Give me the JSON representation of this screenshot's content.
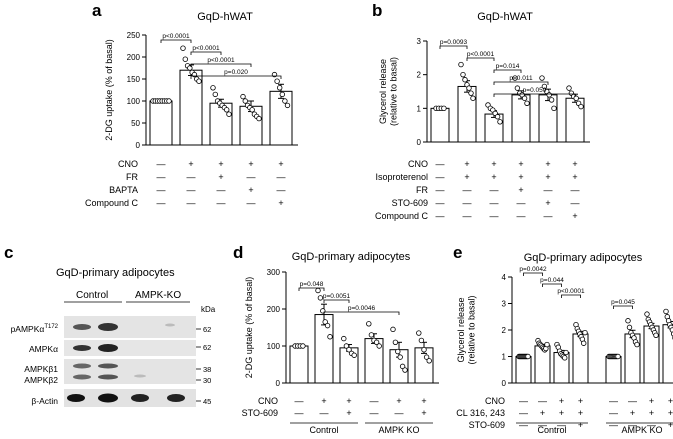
{
  "panels": {
    "a": {
      "letter": "a",
      "chart_data": {
        "type": "bar",
        "title": "GqD-hWAT",
        "ylabel": "2-DG uptake (% of basal)",
        "ylim": [
          0,
          250
        ],
        "yticks": [
          0,
          50,
          100,
          150,
          200,
          250
        ],
        "values": [
          100,
          170,
          95,
          88,
          122
        ],
        "errors": [
          1,
          12,
          9,
          12,
          16
        ],
        "points": [
          [
            100,
            100,
            100,
            100,
            100,
            100,
            100,
            100
          ],
          [
            220,
            195,
            180,
            175,
            165,
            160,
            150,
            145
          ],
          [
            130,
            115,
            100,
            95,
            90,
            85,
            80,
            70
          ],
          [
            110,
            100,
            90,
            85,
            80,
            70,
            65,
            60
          ],
          [
            160,
            145,
            130,
            115,
            100,
            90
          ]
        ],
        "conditions": [
          {
            "name": "CNO",
            "marks": [
              "—",
              "+",
              "+",
              "+",
              "+"
            ]
          },
          {
            "name": "FR",
            "marks": [
              "—",
              "—",
              "+",
              "—",
              "—"
            ]
          },
          {
            "name": "BAPTA",
            "marks": [
              "—",
              "—",
              "—",
              "+",
              "—"
            ]
          },
          {
            "name": "Compound C",
            "marks": [
              "—",
              "—",
              "—",
              "—",
              "+"
            ]
          }
        ],
        "pvalues": [
          {
            "text": "p<0.0001",
            "from": 0,
            "to": 1
          },
          {
            "text": "p<0.0001",
            "from": 1,
            "to": 2
          },
          {
            "text": "p<0.0001",
            "from": 1,
            "to": 3
          },
          {
            "text": "p=0.020",
            "from": 1,
            "to": 4
          }
        ]
      }
    },
    "b": {
      "letter": "b",
      "chart_data": {
        "type": "bar",
        "title": "GqD-hWAT",
        "ylabel": "Glycerol release (relative to basal)",
        "ylim": [
          0,
          3
        ],
        "yticks": [
          0,
          1,
          2,
          3
        ],
        "values": [
          1.0,
          1.65,
          0.83,
          1.4,
          1.4,
          1.3
        ],
        "errors": [
          0.01,
          0.17,
          0.1,
          0.12,
          0.17,
          0.12
        ],
        "points": [
          [
            1,
            1,
            1,
            1
          ],
          [
            2.3,
            2.0,
            1.85,
            1.7,
            1.6,
            1.45,
            1.3
          ],
          [
            1.1,
            1.0,
            0.95,
            0.85,
            0.75,
            0.6
          ],
          [
            1.9,
            1.6,
            1.45,
            1.4,
            1.3,
            1.15
          ],
          [
            1.9,
            1.65,
            1.5,
            1.4,
            1.25,
            1.0
          ],
          [
            1.6,
            1.45,
            1.35,
            1.3,
            1.15,
            1.05
          ]
        ],
        "conditions": [
          {
            "name": "CNO",
            "marks": [
              "—",
              "+",
              "+",
              "+",
              "+",
              "+"
            ]
          },
          {
            "name": "Isoproterenol",
            "marks": [
              "—",
              "+",
              "+",
              "+",
              "+",
              "+"
            ]
          },
          {
            "name": "FR",
            "marks": [
              "—",
              "—",
              "—",
              "+",
              "—",
              "—"
            ]
          },
          {
            "name": "STO-609",
            "marks": [
              "—",
              "—",
              "—",
              "—",
              "+",
              "—"
            ]
          },
          {
            "name": "Compound C",
            "marks": [
              "—",
              "—",
              "—",
              "—",
              "—",
              "+"
            ]
          }
        ],
        "pvalues": [
          {
            "text": "p=0.0093",
            "from": 0,
            "to": 1
          },
          {
            "text": "p<0.0001",
            "from": 1,
            "to": 2
          },
          {
            "text": "p=0.014",
            "from": 2,
            "to": 3
          },
          {
            "text": "p=0.011",
            "from": 2,
            "to": 4
          },
          {
            "text": "p=0.050",
            "from": 2,
            "to": 5
          }
        ]
      }
    },
    "c": {
      "letter": "c",
      "title": "GqD-primary adipocytes",
      "groups": [
        "Control",
        "AMPK-KO"
      ],
      "rows": [
        {
          "label": "pAMPKα",
          "sup": "T172",
          "kda": "62"
        },
        {
          "label": "AMPKα",
          "sup": "",
          "kda": "62"
        },
        {
          "label": "AMPKβ1",
          "sup": "",
          "kda": "38"
        },
        {
          "label": "AMPKβ2",
          "sup": "",
          "kda": "30"
        },
        {
          "label": "β-Actin",
          "sup": "",
          "kda": "45"
        }
      ],
      "kda_unit": "kDa"
    },
    "d": {
      "letter": "d",
      "chart_data": {
        "type": "bar",
        "title": "GqD-primary adipocytes",
        "ylabel": "2-DG uptake (% of basal)",
        "ylim": [
          0,
          300
        ],
        "yticks": [
          0,
          100,
          200,
          300
        ],
        "values": [
          100,
          185,
          95,
          120,
          90,
          95
        ],
        "errors": [
          1,
          28,
          9,
          13,
          20,
          15
        ],
        "points": [
          [
            100,
            100,
            100,
            100
          ],
          [
            250,
            230,
            195,
            165,
            155,
            125
          ],
          [
            120,
            100,
            90,
            80,
            75
          ],
          [
            160,
            130,
            115,
            110,
            100
          ],
          [
            145,
            110,
            85,
            70,
            45,
            35
          ],
          [
            135,
            115,
            90,
            70,
            60
          ]
        ],
        "conditions": [
          {
            "name": "CNO",
            "marks": [
              "—",
              "+",
              "+",
              "—",
              "+",
              "+"
            ]
          },
          {
            "name": "STO-609",
            "marks": [
              "—",
              "—",
              "+",
              "—",
              "—",
              "+"
            ]
          }
        ],
        "groups": [
          {
            "name": "Control",
            "from": 0,
            "to": 2
          },
          {
            "name": "AMPK KO",
            "from": 3,
            "to": 5
          }
        ],
        "pvalues": [
          {
            "text": "p=0.048",
            "from": 0,
            "to": 1
          },
          {
            "text": "p=0.0051",
            "from": 1,
            "to": 2
          },
          {
            "text": "p=0.0046",
            "from": 1,
            "to": 4
          }
        ]
      }
    },
    "e": {
      "letter": "e",
      "chart_data": {
        "type": "bar",
        "title": "GqD-primary adipocytes",
        "ylabel": "Glycerol release (relative to basal)",
        "ylim": [
          0,
          4
        ],
        "yticks": [
          0,
          1,
          2,
          3,
          4
        ],
        "values": [
          1.0,
          1.4,
          1.15,
          1.85,
          1.0,
          1.85,
          2.15,
          2.2
        ],
        "errors": [
          0.01,
          0.06,
          0.08,
          0.1,
          0.01,
          0.14,
          0.1,
          0.12
        ],
        "points": [
          [
            1,
            1,
            1,
            1,
            1,
            1,
            1,
            1,
            1,
            1
          ],
          [
            1.6,
            1.5,
            1.45,
            1.4,
            1.35,
            1.3,
            1.25,
            1.3,
            1.45
          ],
          [
            1.45,
            1.35,
            1.2,
            1.1,
            1.05,
            1.0,
            0.95,
            1.15
          ],
          [
            2.2,
            2.05,
            1.95,
            1.85,
            1.75,
            1.65,
            1.5,
            1.9
          ],
          [
            1,
            1,
            1,
            1,
            1,
            1,
            1,
            1,
            1
          ],
          [
            2.35,
            2.1,
            1.9,
            1.8,
            1.7,
            1.55,
            1.45
          ],
          [
            2.6,
            2.4,
            2.3,
            2.2,
            2.1,
            2.0,
            1.9,
            1.8
          ],
          [
            2.7,
            2.5,
            2.35,
            2.2,
            2.1,
            2.0,
            1.85,
            1.7
          ]
        ],
        "conditions": [
          {
            "name": "CNO",
            "marks": [
              "—",
              "—",
              "+",
              "+",
              "—",
              "—",
              "+",
              "+"
            ]
          },
          {
            "name": "CL 316, 243",
            "marks": [
              "—",
              "+",
              "+",
              "+",
              "—",
              "+",
              "+",
              "+"
            ]
          },
          {
            "name": "STO-609",
            "marks": [
              "—",
              "—",
              "—",
              "+",
              "—",
              "—",
              "—",
              "+"
            ]
          }
        ],
        "groups": [
          {
            "name": "Control",
            "from": 0,
            "to": 3
          },
          {
            "name": "AMPK KO",
            "from": 4,
            "to": 7
          }
        ],
        "pvalues": [
          {
            "text": "p=0.0042",
            "from": 0,
            "to": 1
          },
          {
            "text": "p=0.044",
            "from": 1,
            "to": 2
          },
          {
            "text": "p<0.0001",
            "from": 2,
            "to": 3
          },
          {
            "text": "p=0.045",
            "from": 4,
            "to": 5
          }
        ]
      }
    }
  }
}
